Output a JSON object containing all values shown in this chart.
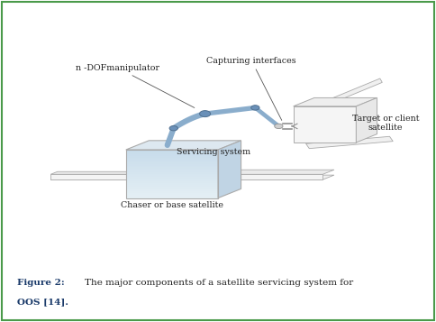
{
  "background_color": "#ffffff",
  "border_color": "#4a9a4a",
  "label_chaser": "Chaser or base satellite",
  "label_manipulator": "n -DOFmanipulator",
  "label_capturing": "Capturing interfaces",
  "label_servicing": "Servicing system",
  "label_target": "Target or client\nsatellite",
  "arm_color": "#8aadcc",
  "joint_color": "#6a90b8",
  "box_edge_color": "#aaaaaa",
  "chaser_front_top": "#c8dce8",
  "chaser_front_mid": "#a0c0d8",
  "chaser_front_bot": "#dce8f0",
  "target_box_color": "#f2f2f2",
  "panel_color": "#ececec",
  "panel_edge": "#aaaaaa",
  "caption_bold_color": "#1a3a6a",
  "caption_text_color": "#222222"
}
